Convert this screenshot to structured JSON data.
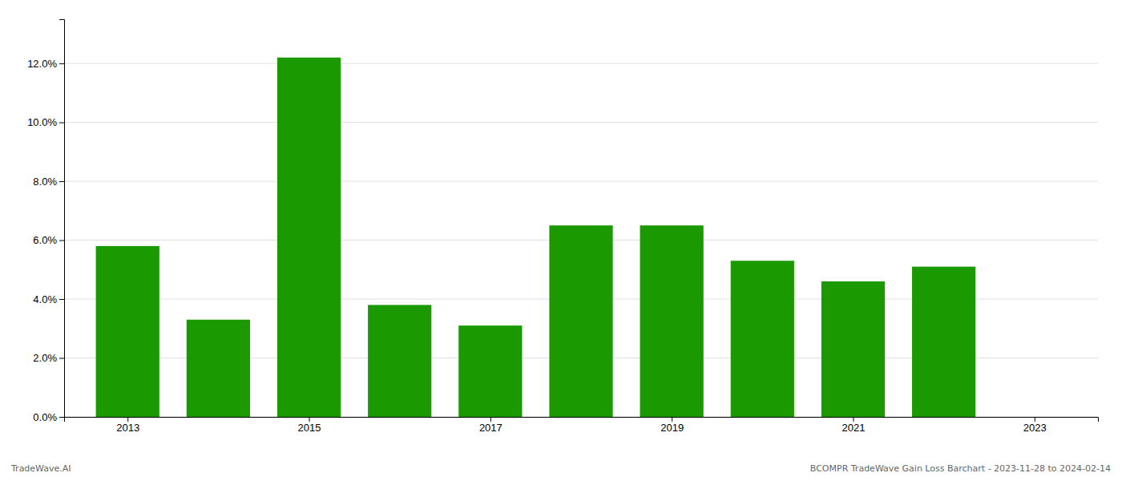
{
  "chart_data": {
    "type": "bar",
    "x": [
      2013,
      2014,
      2015,
      2016,
      2017,
      2018,
      2019,
      2020,
      2021,
      2022
    ],
    "values": [
      0.058,
      0.033,
      0.122,
      0.038,
      0.031,
      0.065,
      0.065,
      0.053,
      0.046,
      0.051
    ],
    "color": "#1a9a00",
    "xlim": [
      2012.3,
      2023.7
    ],
    "xticks": [
      2013,
      2015,
      2017,
      2019,
      2021,
      2023
    ],
    "ylim": [
      0,
      0.135
    ],
    "yticks": [
      {
        "value": 0.0,
        "label": "0.0%"
      },
      {
        "value": 0.02,
        "label": "2.0%"
      },
      {
        "value": 0.04,
        "label": "4.0%"
      },
      {
        "value": 0.06,
        "label": "6.0%"
      },
      {
        "value": 0.08,
        "label": "8.0%"
      },
      {
        "value": 0.1,
        "label": "10.0%"
      },
      {
        "value": 0.12,
        "label": "12.0%"
      }
    ],
    "grid": true,
    "annotations": [
      "TradeWave.AI",
      "BCOMPR TradeWave Gain Loss Barchart - 2023-11-28 to 2024-02-14"
    ]
  }
}
